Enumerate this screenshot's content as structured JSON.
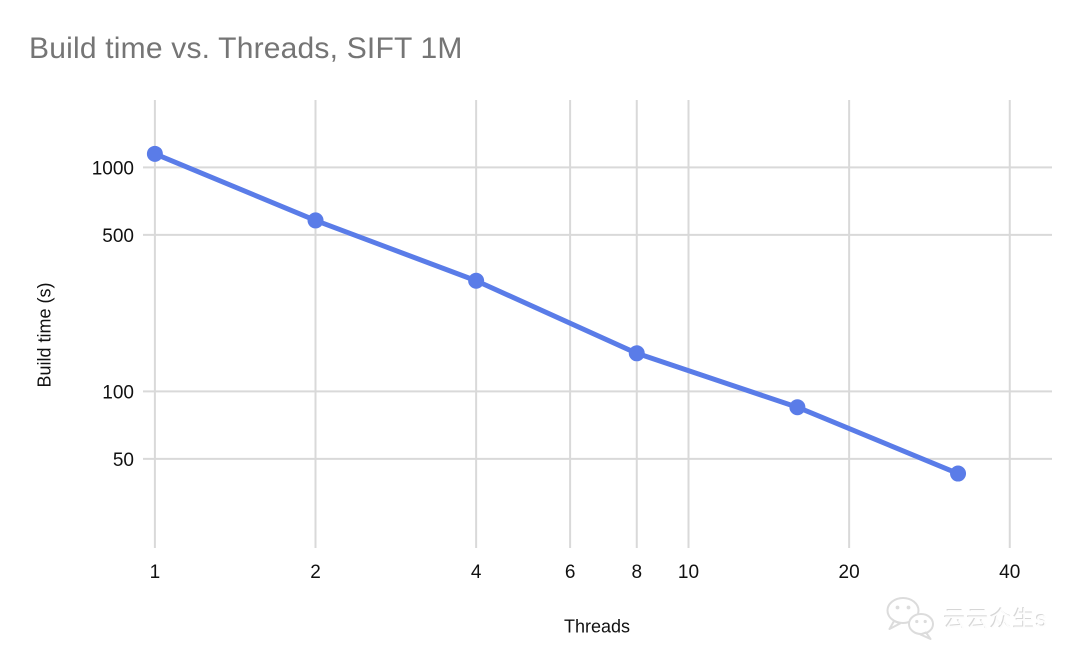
{
  "chart_data": {
    "type": "line",
    "title": "Build time vs. Threads, SIFT 1M",
    "xlabel": "Threads",
    "ylabel": "Build time (s)",
    "x_scale": "log",
    "y_scale": "log",
    "x": [
      1,
      2,
      4,
      8,
      16,
      32
    ],
    "y": [
      1150,
      580,
      312,
      148,
      85,
      43
    ],
    "x_ticks": [
      1,
      2,
      4,
      6,
      8,
      10,
      20,
      40
    ],
    "y_ticks": [
      50,
      100,
      500,
      1000
    ],
    "x_range": [
      0.95,
      48
    ],
    "y_range": [
      20,
      2000
    ],
    "grid": true,
    "legend": "none",
    "series_color": "#5a7ce8",
    "gridline_color": "#d9d9d9",
    "title_color": "#757575",
    "tick_label_color": "#111111"
  },
  "watermark": {
    "text": "云云众生s",
    "icon": "wechat-icon"
  }
}
